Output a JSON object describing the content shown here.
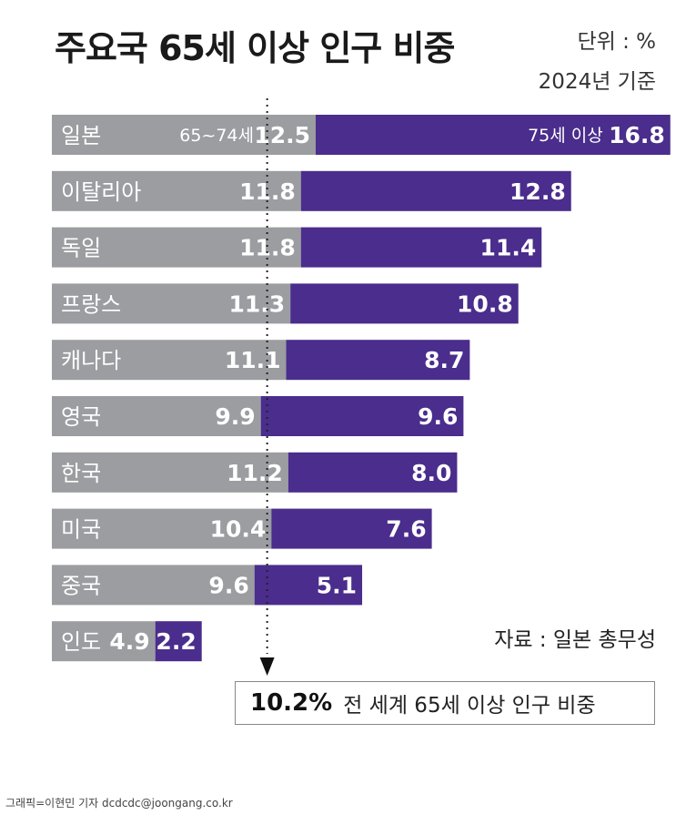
{
  "title": "주요국 65세 이상 인구 비중",
  "unit": "단위 : %",
  "basis": "2024년 기준",
  "source": "자료 : 일본 총무성",
  "credit": "그래픽=이현민 기자 dcdcdc@joongang.co.kr",
  "world": {
    "value": "10.2%",
    "label": "전 세계 65세 이상 인구 비중"
  },
  "colors": {
    "young_old": "#9b9da1",
    "old_old": "#4a2d8c",
    "text": "#ffffff"
  },
  "chart_data": {
    "type": "bar",
    "stacked": true,
    "orientation": "horizontal",
    "categories": [
      "일본",
      "이탈리아",
      "독일",
      "프랑스",
      "캐나다",
      "영국",
      "한국",
      "미국",
      "중국",
      "인도"
    ],
    "series": [
      {
        "name": "65~74세",
        "values": [
          12.5,
          11.8,
          11.8,
          11.3,
          11.1,
          9.9,
          11.2,
          10.4,
          9.6,
          4.9
        ]
      },
      {
        "name": "75세 이상",
        "values": [
          16.8,
          12.8,
          11.4,
          10.8,
          8.7,
          9.6,
          8.0,
          7.6,
          5.1,
          2.2
        ]
      }
    ],
    "value_labels_1": [
      "12.5",
      "11.8",
      "11.8",
      "11.3",
      "11.1",
      "9.9",
      "11.2",
      "10.4",
      "9.6",
      "4.9"
    ],
    "value_labels_2": [
      "16.8",
      "12.8",
      "11.4",
      "10.8",
      "8.7",
      "9.6",
      "8.0",
      "7.6",
      "5.1",
      "2.2"
    ],
    "reference_line": 10.2
  }
}
